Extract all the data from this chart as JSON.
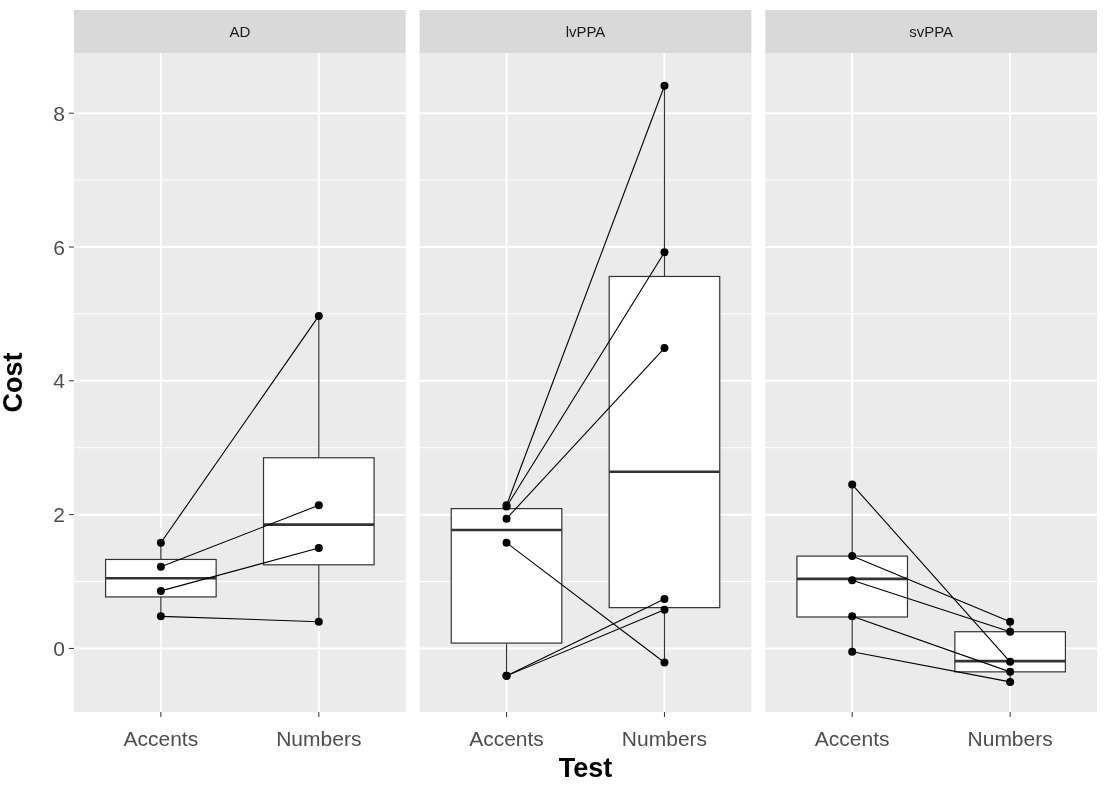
{
  "chart_data": [
    {
      "type": "box",
      "title": "AD",
      "ylabel": "Cost",
      "categories": [
        "Accents",
        "Numbers"
      ],
      "ylim": [
        -0.95,
        8.9
      ],
      "yticks": [
        0,
        {
          "value": 1,
          "label": null
        },
        2,
        {
          "value": 3,
          "label": null
        },
        4,
        {
          "value": 5,
          "label": null
        },
        6,
        {
          "value": 7,
          "label": null
        },
        8
      ],
      "grid": true,
      "marker": "circle",
      "boxes": [
        {
          "low": 0.48,
          "q1": 0.77,
          "median": 1.05,
          "q3": 1.33,
          "high": 1.58
        },
        {
          "low": 0.4,
          "q1": 1.25,
          "median": 1.85,
          "q3": 2.85,
          "high": 4.97
        }
      ],
      "series": [
        {
          "type": "line",
          "color": "#000000",
          "values": [
            1.58,
            4.97
          ]
        },
        {
          "type": "line",
          "color": "#000000",
          "values": [
            1.22,
            2.14
          ]
        },
        {
          "type": "line",
          "color": "#000000",
          "values": [
            0.86,
            1.5
          ]
        },
        {
          "type": "line",
          "color": "#000000",
          "values": [
            0.48,
            0.4
          ]
        }
      ]
    },
    {
      "type": "box",
      "title": "lvPPA",
      "xlabel": "Test",
      "categories": [
        "Accents",
        "Numbers"
      ],
      "ylim": [
        -0.95,
        8.9
      ],
      "yticks": [
        0,
        {
          "value": 1,
          "label": null
        },
        2,
        {
          "value": 3,
          "label": null
        },
        4,
        {
          "value": 5,
          "label": null
        },
        6,
        {
          "value": 7,
          "label": null
        },
        8
      ],
      "grid": true,
      "marker": "circle",
      "tick_labels": "x",
      "boxes": [
        {
          "low": -0.41,
          "q1": 0.08,
          "median": 1.77,
          "q3": 2.09,
          "high": 2.14
        },
        {
          "low": -0.21,
          "q1": 0.61,
          "median": 2.64,
          "q3": 5.56,
          "high": 8.41
        }
      ],
      "series": [
        {
          "type": "line",
          "color": "#000000",
          "values": [
            2.14,
            8.41
          ]
        },
        {
          "type": "line",
          "color": "#000000",
          "values": [
            2.12,
            5.92
          ]
        },
        {
          "type": "line",
          "color": "#000000",
          "values": [
            1.94,
            4.49
          ]
        },
        {
          "type": "line",
          "color": "#000000",
          "values": [
            1.58,
            -0.21
          ]
        },
        {
          "type": "line",
          "color": "#000000",
          "values": [
            -0.41,
            0.74
          ]
        },
        {
          "type": "line",
          "color": "#000000",
          "values": [
            -0.41,
            0.58
          ]
        }
      ]
    },
    {
      "type": "box",
      "title": "svPPA",
      "categories": [
        "Accents",
        "Numbers"
      ],
      "ylim": [
        -0.95,
        8.9
      ],
      "yticks": [
        0,
        {
          "value": 1,
          "label": null
        },
        2,
        {
          "value": 3,
          "label": null
        },
        4,
        {
          "value": 5,
          "label": null
        },
        6,
        {
          "value": 7,
          "label": null
        },
        8
      ],
      "grid": true,
      "marker": "circle",
      "tick_labels": "x",
      "boxes": [
        {
          "low": -0.05,
          "q1": 0.47,
          "median": 1.04,
          "q3": 1.38,
          "high": 2.45
        },
        {
          "low": -0.5,
          "q1": -0.35,
          "median": -0.19,
          "q3": 0.25,
          "high": 0.4
        }
      ],
      "series": [
        {
          "type": "line",
          "color": "#000000",
          "values": [
            2.45,
            -0.2
          ]
        },
        {
          "type": "line",
          "color": "#000000",
          "values": [
            1.38,
            0.4
          ]
        },
        {
          "type": "line",
          "color": "#000000",
          "values": [
            1.02,
            0.25
          ]
        },
        {
          "type": "line",
          "color": "#000000",
          "values": [
            0.48,
            -0.35
          ]
        },
        {
          "type": "line",
          "color": "#000000",
          "values": [
            -0.05,
            -0.5
          ]
        }
      ]
    }
  ]
}
